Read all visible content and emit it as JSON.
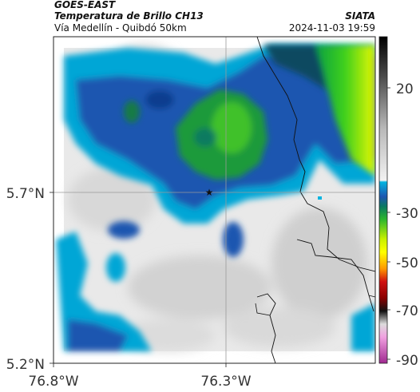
{
  "header": {
    "satellite": "GOES-EAST",
    "product": "Temperatura de Brillo CH13",
    "route": "Vía Medellín - Quibdó 50km",
    "source": "SIATA",
    "timestamp": "2024-11-03 19:59"
  },
  "map": {
    "lat_ticks": [
      "5.7°N",
      "5.2°N"
    ],
    "lon_ticks": [
      "76.8°W",
      "76.3°W"
    ],
    "marker_icon": "star-icon"
  },
  "colorbar": {
    "ticks": [
      "20",
      "-30",
      "-50",
      "-70",
      "-90"
    ],
    "colors": {
      "warm_gray": "#d0d0d0",
      "cyan": "#00a6d6",
      "blue": "#1e56b0",
      "green": "#2db72d",
      "yellow": "#ffff00",
      "red": "#d01010",
      "dark": "#111111",
      "magenta": "#c040b0"
    }
  }
}
